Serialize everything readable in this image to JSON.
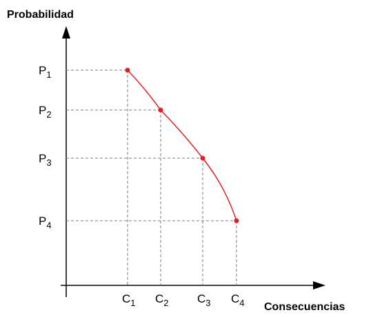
{
  "diagram": {
    "y_axis_label": "Probabilidad",
    "x_axis_label": "Consecuencias",
    "y_labels": [
      {
        "letter": "P",
        "index": "1"
      },
      {
        "letter": "P",
        "index": "2"
      },
      {
        "letter": "P",
        "index": "3"
      },
      {
        "letter": "P",
        "index": "4"
      }
    ],
    "x_labels": [
      {
        "letter": "C",
        "index": "1"
      },
      {
        "letter": "C",
        "index": "2"
      },
      {
        "letter": "C",
        "index": "3"
      },
      {
        "letter": "C",
        "index": "4"
      }
    ]
  }
}
